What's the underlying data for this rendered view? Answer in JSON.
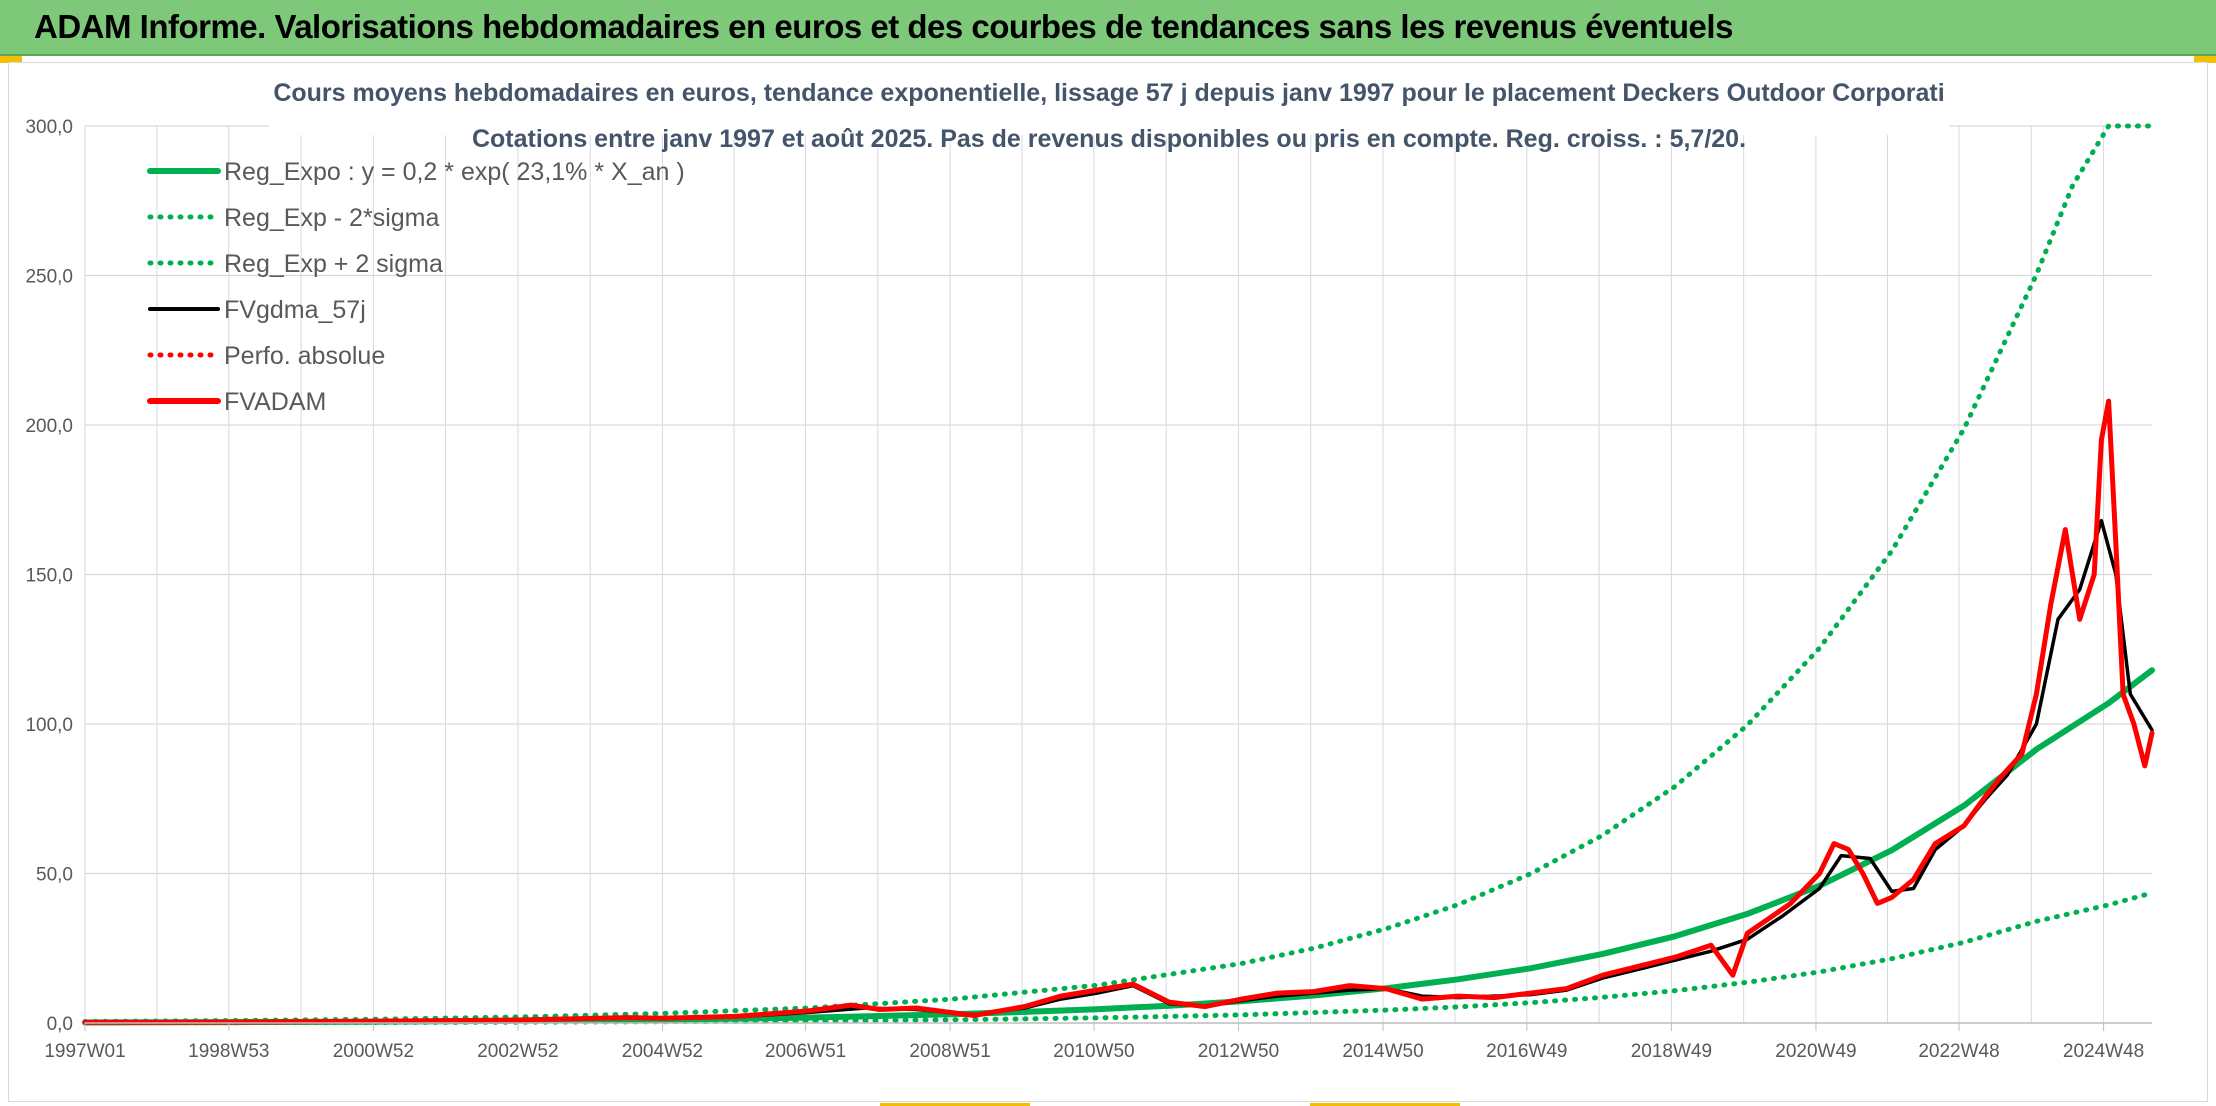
{
  "banner": {
    "title": "ADAM Informe. Valorisations hebdomadaires en euros et des courbes de tendances sans les revenus éventuels"
  },
  "colors": {
    "banner_bg": "#7ec87a",
    "trend_green": "#00b050",
    "smoothed_black": "#000000",
    "adam_red": "#ff0000",
    "grid": "#d9d9d9"
  },
  "chart_data": {
    "type": "line",
    "title": "Cours moyens hebdomadaires en euros, tendance exponentielle, lissage 57 j depuis janv 1997 pour le placement Deckers Outdoor Corporati",
    "subtitle": "Cotations entre janv 1997 et août 2025. Pas de revenus disponibles ou pris en compte. Reg. croiss. : 5,7/20.",
    "xlabel": "",
    "ylabel": "",
    "ylim": [
      0,
      300
    ],
    "xlim": [
      1997.0,
      2025.6
    ],
    "yticks": [
      "0,0",
      "50,0",
      "100,0",
      "150,0",
      "200,0",
      "250,0",
      "300,0"
    ],
    "ytick_values": [
      0,
      50,
      100,
      150,
      200,
      250,
      300
    ],
    "xticks": [
      "1997W01",
      "1998W53",
      "2000W52",
      "2002W52",
      "2004W52",
      "2006W51",
      "2008W51",
      "2010W50",
      "2012W50",
      "2014W50",
      "2016W49",
      "2018W49",
      "2020W49",
      "2022W48",
      "2024W48"
    ],
    "xtick_values": [
      1997.0,
      1998.99,
      2000.99,
      2002.99,
      2004.99,
      2006.97,
      2008.97,
      2010.96,
      2012.96,
      2014.96,
      2016.95,
      2018.95,
      2020.95,
      2022.93,
      2024.93
    ],
    "grid": true,
    "legend_position": "top-left",
    "legend": [
      {
        "label": "Reg_Expo : y = 0,2 * exp( 23,1% *  X_an )",
        "color": "#00b050",
        "style": "solid-thick"
      },
      {
        "label": "Reg_Exp - 2*sigma",
        "color": "#00b050",
        "style": "dotted"
      },
      {
        "label": "Reg_Exp + 2 sigma",
        "color": "#00b050",
        "style": "dotted"
      },
      {
        "label": "FVgdma_57j",
        "color": "#000000",
        "style": "solid"
      },
      {
        "label": "Perfo. absolue",
        "color": "#ff0000",
        "style": "dotted"
      },
      {
        "label": "FVADAM",
        "color": "#ff0000",
        "style": "solid-thick"
      }
    ],
    "series": [
      {
        "name": "Reg_Expo : y = 0,2 * exp( 23,1% *  X_an )",
        "x": [
          1997,
          1999,
          2001,
          2003,
          2005,
          2007,
          2009,
          2010,
          2011,
          2012,
          2013,
          2014,
          2015,
          2016,
          2017,
          2018,
          2019,
          2020,
          2021,
          2022,
          2023,
          2024,
          2025,
          2025.6
        ],
        "values": [
          0.18,
          0.29,
          0.45,
          0.72,
          1.14,
          1.82,
          2.9,
          3.7,
          4.6,
          5.8,
          7.3,
          9.2,
          11.6,
          14.6,
          18.3,
          23.1,
          29.0,
          36.5,
          45.9,
          57.8,
          72.7,
          91.5,
          107,
          118
        ]
      },
      {
        "name": "Reg_Exp - 2*sigma",
        "x": [
          1997,
          1999,
          2001,
          2003,
          2005,
          2007,
          2009,
          2011,
          2013,
          2015,
          2016,
          2017,
          2018,
          2019,
          2020,
          2021,
          2022,
          2023,
          2024,
          2025,
          2025.6
        ],
        "values": [
          0.07,
          0.11,
          0.17,
          0.27,
          0.42,
          0.67,
          1.06,
          1.7,
          2.7,
          4.3,
          5.4,
          6.8,
          8.6,
          10.8,
          13.6,
          17.1,
          21.5,
          27.0,
          34.0,
          39.5,
          43.5
        ]
      },
      {
        "name": "Reg_Exp + 2 sigma",
        "x": [
          1997,
          1999,
          2001,
          2003,
          2005,
          2007,
          2009,
          2011,
          2013,
          2014,
          2015,
          2016,
          2017,
          2018,
          2019,
          2020,
          2021,
          2022,
          2023,
          2024,
          2024.5,
          2025,
          2025.6
        ],
        "values": [
          0.5,
          0.8,
          1.25,
          2.0,
          3.2,
          5.0,
          8.0,
          12.6,
          19.9,
          25.0,
          31.5,
          39.6,
          49.9,
          62.8,
          79.1,
          99.6,
          125.4,
          157.9,
          198.8,
          250.3,
          280,
          300,
          300
        ]
      },
      {
        "name": "FVgdma_57j",
        "x": [
          1997,
          1999,
          2001,
          2003,
          2004.5,
          2005,
          2006,
          2007,
          2007.8,
          2008.5,
          2009.3,
          2010,
          2010.5,
          2011,
          2011.5,
          2012,
          2012.5,
          2013,
          2013.5,
          2014,
          2014.5,
          2015,
          2015.5,
          2016,
          2016.5,
          2017,
          2017.5,
          2018,
          2018.5,
          2019,
          2019.5,
          2020,
          2020.5,
          2021,
          2021.3,
          2021.7,
          2022,
          2022.3,
          2022.6,
          2023,
          2023.3,
          2023.6,
          2024,
          2024.3,
          2024.6,
          2024.9,
          2025.1,
          2025.3,
          2025.6
        ],
        "values": [
          0.2,
          0.3,
          0.6,
          1.0,
          1.6,
          1.8,
          2.0,
          3.5,
          5.0,
          4.5,
          2.8,
          5.0,
          8.0,
          10.0,
          12.5,
          6.5,
          5.5,
          7.5,
          9.0,
          10.0,
          11.0,
          11.5,
          9.0,
          8.5,
          9.0,
          9.5,
          11.0,
          15.0,
          18.0,
          21.0,
          24.0,
          28.0,
          36.0,
          45.0,
          56.0,
          55.0,
          44.0,
          45.0,
          58.0,
          66.0,
          75.0,
          83.0,
          100.0,
          135.0,
          145.0,
          168.0,
          150.0,
          110.0,
          98.0
        ]
      },
      {
        "name": "FVADAM",
        "x": [
          1997,
          1999,
          2001,
          2003,
          2004.5,
          2005,
          2006,
          2007,
          2007.6,
          2008,
          2008.5,
          2009.3,
          2010,
          2010.5,
          2011,
          2011.5,
          2012,
          2012.5,
          2013,
          2013.5,
          2014,
          2014.5,
          2015,
          2015.5,
          2016,
          2016.5,
          2017,
          2017.5,
          2018,
          2018.5,
          2019,
          2019.5,
          2019.8,
          2020,
          2020.3,
          2020.6,
          2021,
          2021.2,
          2021.4,
          2021.6,
          2021.8,
          2022,
          2022.3,
          2022.6,
          2023,
          2023.3,
          2023.5,
          2023.8,
          2024,
          2024.2,
          2024.4,
          2024.6,
          2024.8,
          2024.9,
          2025.0,
          2025.1,
          2025.2,
          2025.35,
          2025.5,
          2025.6
        ],
        "values": [
          0.2,
          0.3,
          0.6,
          1.0,
          1.8,
          1.6,
          2.2,
          4.0,
          6.0,
          4.5,
          5.0,
          2.5,
          5.5,
          9.0,
          11.0,
          13.0,
          7.0,
          5.5,
          8.0,
          10.0,
          10.5,
          12.5,
          11.5,
          8.0,
          9.0,
          8.5,
          10.0,
          11.5,
          16.0,
          19.0,
          22.0,
          26.0,
          16.0,
          30.0,
          35.0,
          40.0,
          50.0,
          60.0,
          58.0,
          50.0,
          40.0,
          42.0,
          48.0,
          60.0,
          66.0,
          76.0,
          82.0,
          90.0,
          110.0,
          140.0,
          165.0,
          135.0,
          150.0,
          195.0,
          208.0,
          160.0,
          110.0,
          100.0,
          86.0,
          97.0
        ]
      }
    ]
  }
}
